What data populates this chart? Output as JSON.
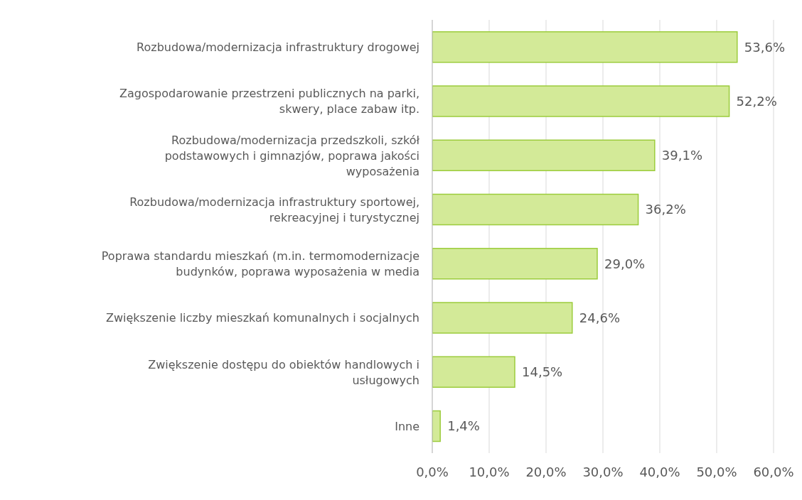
{
  "chart_data": {
    "type": "bar",
    "orientation": "horizontal",
    "categories": [
      "Rozbudowa/modernizacja infrastruktury drogowej",
      "Zagospodarowanie przestrzeni publicznych na parki, skwery, place zabaw itp.",
      "Rozbudowa/modernizacja przedszkoli, szkół podstawowych i gimnazjów, poprawa jakości wyposażenia",
      "Rozbudowa/modernizacja infrastruktury sportowej, rekreacyjnej i turystycznej",
      "Poprawa standardu mieszkań (m.in. termomodernizacje budynków, poprawa wyposażenia w media",
      "Zwiększenie liczby mieszkań komunalnych i socjalnych",
      "Zwiększenie dostępu do obiektów handlowych i usługowych",
      "Inne"
    ],
    "values": [
      53.6,
      52.2,
      39.1,
      36.2,
      29.0,
      24.6,
      14.5,
      1.4
    ],
    "value_labels": [
      "53,6%",
      "52,2%",
      "39,1%",
      "36,2%",
      "29,0%",
      "24,6%",
      "14,5%",
      "1,4%"
    ],
    "color": "#d3ea98",
    "xlim": [
      0,
      60
    ],
    "xticks": [
      {
        "value": 0,
        "label": "0,0%"
      },
      {
        "value": 10,
        "label": "10,0%"
      },
      {
        "value": 20,
        "label": "20,0%"
      },
      {
        "value": 30,
        "label": "30,0%"
      },
      {
        "value": 40,
        "label": "40,0%"
      },
      {
        "value": 50,
        "label": "50,0%"
      },
      {
        "value": 60,
        "label": "60,0%"
      }
    ],
    "grid": "x"
  }
}
